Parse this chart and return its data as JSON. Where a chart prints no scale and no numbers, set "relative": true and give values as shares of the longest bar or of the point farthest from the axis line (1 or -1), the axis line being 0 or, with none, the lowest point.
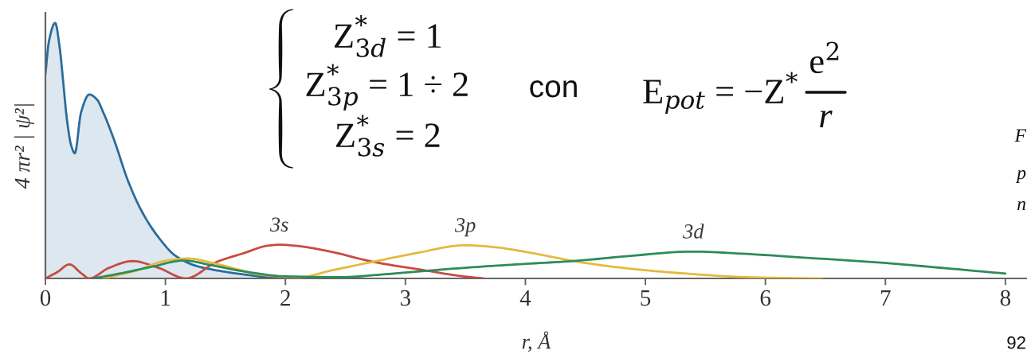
{
  "chart_data": {
    "type": "line",
    "relative": true,
    "xlabel": "r, Å",
    "ylabel": "4 πr² | ψ²|",
    "xlim": [
      0,
      8.18
    ],
    "xticks": [
      0,
      1,
      2,
      3,
      4,
      5,
      6,
      7,
      8
    ],
    "grid": false,
    "legend": false,
    "annotations": [
      "Z$^{*}$$_{3d}$ = 1",
      "Z$^{*}$$_{3p}$ = 1 ÷ 2",
      "Z$^{*}$$_{3s}$ = 2",
      "con",
      "E$_{pot}$ = −Z$^{*}$",
      "e$^{2}$",
      "r",
      "F",
      "p",
      "n",
      "92"
    ],
    "series": [
      {
        "type": "area",
        "color": "#2b6c9b",
        "x": [
          0,
          0.03,
          0.081,
          0.12,
          0.146,
          0.18,
          0.215,
          0.245,
          0.297,
          0.366,
          0.43,
          0.482,
          0.574,
          0.69,
          0.806,
          0.944,
          1.08,
          1.25,
          1.4,
          1.57,
          1.83,
          2.06
        ],
        "values": [
          0.8,
          0.93,
          1.0,
          0.9,
          0.78,
          0.62,
          0.52,
          0.49,
          0.65,
          0.72,
          0.7,
          0.65,
          0.54,
          0.38,
          0.26,
          0.16,
          0.09,
          0.05,
          0.034,
          0.021,
          0.006,
          0
        ]
      },
      {
        "name": "3s",
        "color": "#c84b3f",
        "x": [
          0,
          0.1,
          0.2,
          0.297,
          0.366,
          0.528,
          0.725,
          0.944,
          1.17,
          1.43,
          1.66,
          1.85,
          1.95,
          2.1,
          2.355,
          2.73,
          3.17,
          3.45,
          3.65
        ],
        "values": [
          0,
          0.025,
          0.055,
          0.021,
          0,
          0.041,
          0.068,
          0.041,
          0,
          0.065,
          0.1,
          0.128,
          0.132,
          0.127,
          0.107,
          0.065,
          0.031,
          0.01,
          0
        ]
      },
      {
        "name": "3p",
        "color": "#e3ba3c",
        "x": [
          0.48,
          0.76,
          0.99,
          1.19,
          1.38,
          1.64,
          1.77,
          2.11,
          2.4,
          2.76,
          3.1,
          3.5,
          3.75,
          4.0,
          4.29,
          4.4,
          4.78,
          5.28,
          5.9,
          6.47
        ],
        "values": [
          0,
          0.031,
          0.068,
          0.078,
          0.062,
          0.031,
          0.016,
          0.005,
          0.033,
          0.068,
          0.1,
          0.13,
          0.122,
          0.104,
          0.078,
          0.068,
          0.043,
          0.021,
          0.004,
          0
        ]
      },
      {
        "name": "3d",
        "color": "#2e8b5a",
        "x": [
          0.4,
          0.64,
          0.9,
          1.15,
          1.4,
          1.66,
          2.0,
          2.46,
          2.8,
          3.2,
          3.6,
          4.0,
          4.4,
          4.8,
          5.4,
          5.8,
          6.27,
          7.01,
          7.5,
          8.0
        ],
        "values": [
          0,
          0.021,
          0.047,
          0.07,
          0.05,
          0.027,
          0.008,
          0.005,
          0.015,
          0.031,
          0.045,
          0.057,
          0.068,
          0.085,
          0.105,
          0.097,
          0.083,
          0.06,
          0.04,
          0.019
        ]
      }
    ]
  }
}
